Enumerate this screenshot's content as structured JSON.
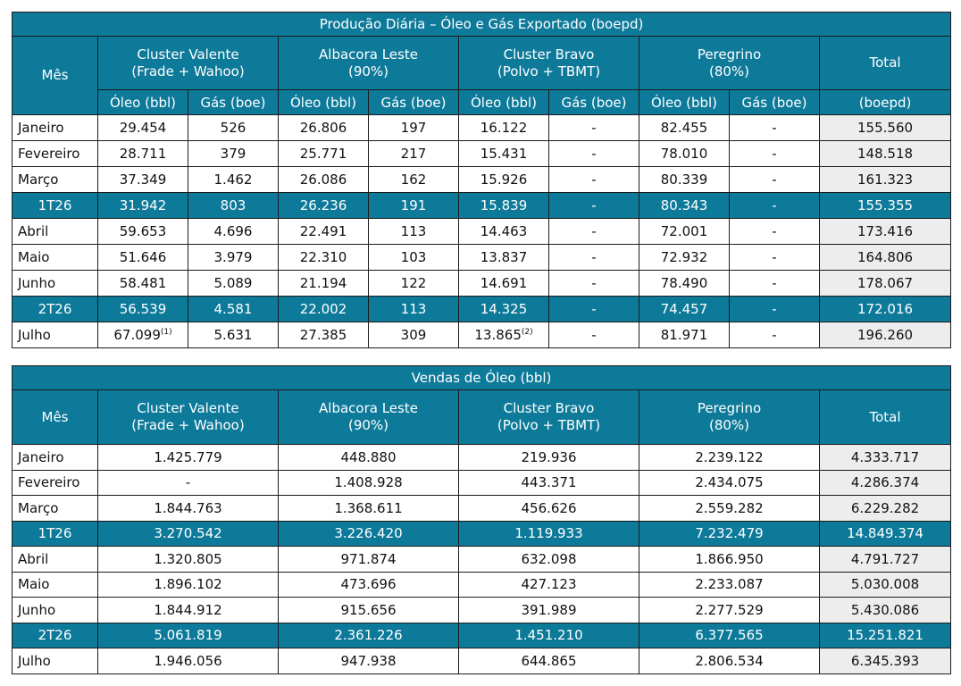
{
  "production": {
    "title": "Produção Diária – Óleo e Gás Exportado (boepd)",
    "col_month": "Mês",
    "groups": [
      {
        "name": "Cluster Valente",
        "sub": "(Frade + Wahoo)"
      },
      {
        "name": "Albacora Leste",
        "sub": "(90%)"
      },
      {
        "name": "Cluster Bravo",
        "sub": "(Polvo + TBMT)"
      },
      {
        "name": "Peregrino",
        "sub": "(80%)"
      }
    ],
    "col_total": "Total",
    "col_total_unit": "(boepd)",
    "oil_label": "Óleo (bbl)",
    "gas_label": "Gás (boe)",
    "rows": [
      {
        "month": "Janeiro",
        "v": [
          "29.454",
          "526",
          "26.806",
          "197",
          "16.122",
          "-",
          "82.455",
          "-"
        ],
        "total": "155.560"
      },
      {
        "month": "Fevereiro",
        "v": [
          "28.711",
          "379",
          "25.771",
          "217",
          "15.431",
          "-",
          "78.010",
          "-"
        ],
        "total": "148.518"
      },
      {
        "month": "Março",
        "v": [
          "37.349",
          "1.462",
          "26.086",
          "162",
          "15.926",
          "-",
          "80.339",
          "-"
        ],
        "total": "161.323"
      },
      {
        "month": "1T26",
        "v": [
          "31.942",
          "803",
          "26.236",
          "191",
          "15.839",
          "-",
          "80.343",
          "-"
        ],
        "total": "155.355"
      },
      {
        "month": "Abril",
        "v": [
          "59.653",
          "4.696",
          "22.491",
          "113",
          "14.463",
          "-",
          "72.001",
          "-"
        ],
        "total": "173.416"
      },
      {
        "month": "Maio",
        "v": [
          "51.646",
          "3.979",
          "22.310",
          "103",
          "13.837",
          "-",
          "72.932",
          "-"
        ],
        "total": "164.806"
      },
      {
        "month": "Junho",
        "v": [
          "58.481",
          "5.089",
          "21.194",
          "122",
          "14.691",
          "-",
          "78.490",
          "-"
        ],
        "total": "178.067"
      },
      {
        "month": "2T26",
        "v": [
          "56.539",
          "4.581",
          "22.002",
          "113",
          "14.325",
          "-",
          "74.457",
          "-"
        ],
        "total": "172.016"
      },
      {
        "month": "Julho",
        "v": [
          "67.099",
          "5.631",
          "27.385",
          "309",
          "13.865",
          "-",
          "81.971",
          "-"
        ],
        "total": "196.260"
      }
    ],
    "footnote_1": "(1)",
    "footnote_2": "(2)"
  },
  "sales": {
    "title": "Vendas de Óleo (bbl)",
    "col_month": "Mês",
    "groups": [
      {
        "name": "Cluster Valente",
        "sub": "(Frade + Wahoo)"
      },
      {
        "name": "Albacora Leste",
        "sub": "(90%)"
      },
      {
        "name": "Cluster Bravo",
        "sub": "(Polvo + TBMT)"
      },
      {
        "name": "Peregrino",
        "sub": "(80%)"
      }
    ],
    "col_total": "Total",
    "rows": [
      {
        "month": "Janeiro",
        "v": [
          "1.425.779",
          "448.880",
          "219.936",
          "2.239.122"
        ],
        "total": "4.333.717"
      },
      {
        "month": "Fevereiro",
        "v": [
          "-",
          "1.408.928",
          "443.371",
          "2.434.075"
        ],
        "total": "4.286.374"
      },
      {
        "month": "Março",
        "v": [
          "1.844.763",
          "1.368.611",
          "456.626",
          "2.559.282"
        ],
        "total": "6.229.282"
      },
      {
        "month": "1T26",
        "v": [
          "3.270.542",
          "3.226.420",
          "1.119.933",
          "7.232.479"
        ],
        "total": "14.849.374"
      },
      {
        "month": "Abril",
        "v": [
          "1.320.805",
          "971.874",
          "632.098",
          "1.866.950"
        ],
        "total": "4.791.727"
      },
      {
        "month": "Maio",
        "v": [
          "1.896.102",
          "473.696",
          "427.123",
          "2.233.087"
        ],
        "total": "5.030.008"
      },
      {
        "month": "Junho",
        "v": [
          "1.844.912",
          "915.656",
          "391.989",
          "2.277.529"
        ],
        "total": "5.430.086"
      },
      {
        "month": "2T26",
        "v": [
          "5.061.819",
          "2.361.226",
          "1.451.210",
          "6.377.565"
        ],
        "total": "15.251.821"
      },
      {
        "month": "Julho",
        "v": [
          "1.946.056",
          "947.938",
          "644.865",
          "2.806.534"
        ],
        "total": "6.345.393"
      }
    ]
  }
}
